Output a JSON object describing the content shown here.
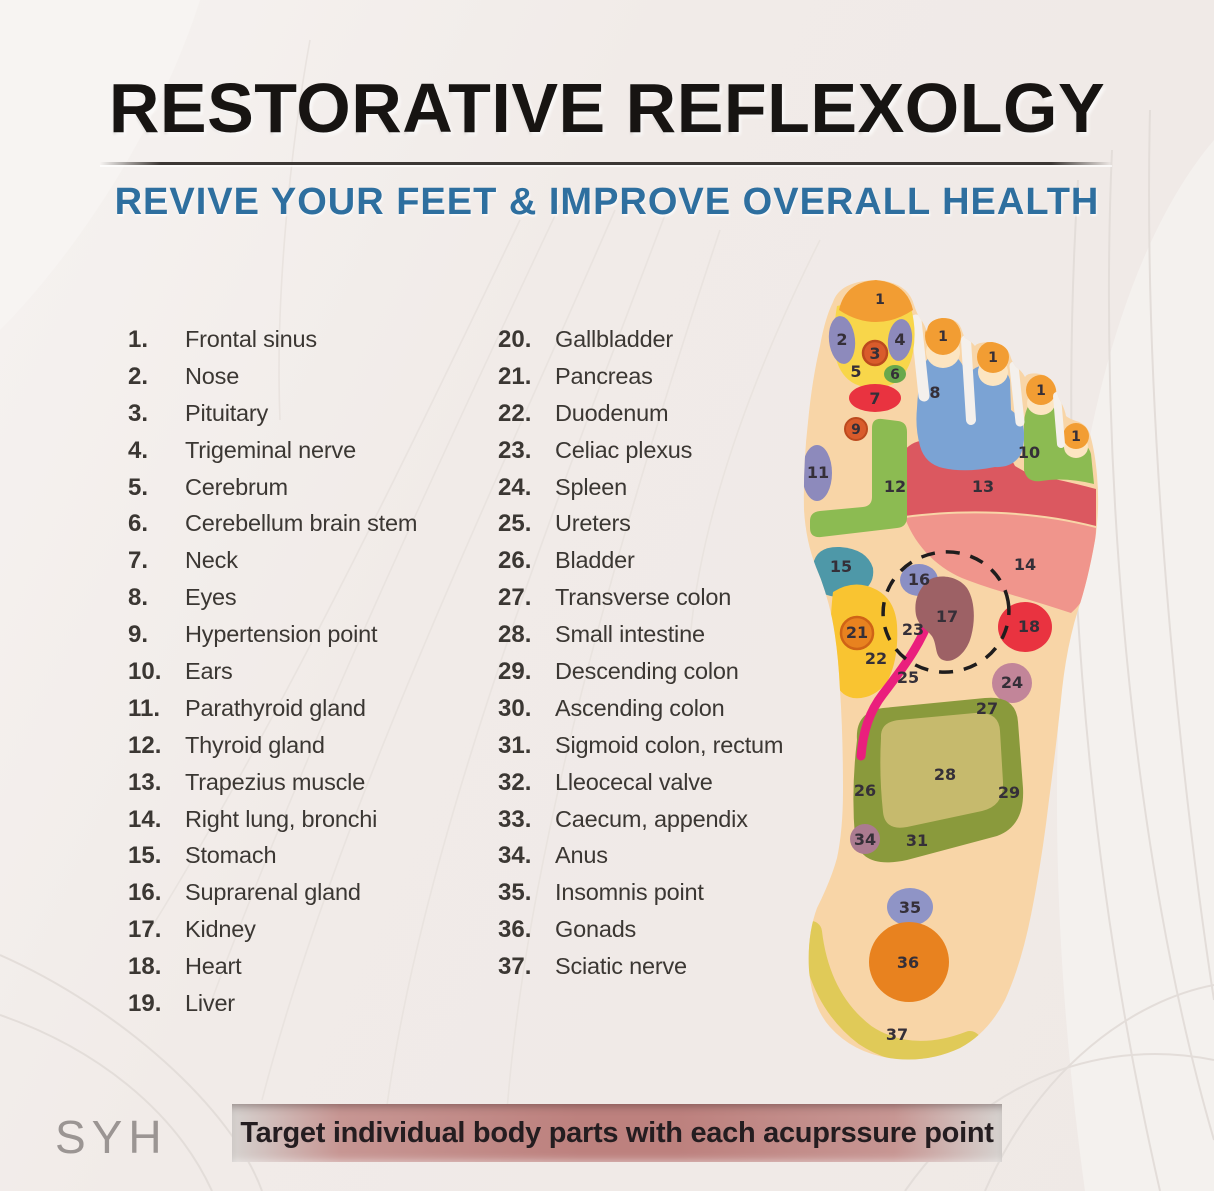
{
  "page": {
    "title": "RESTORATIVE REFLEXOLGY",
    "subtitle": "REVIVE YOUR FEET & IMPROVE OVERALL HEALTH",
    "banner": "Target individual body parts with each acuprssure point",
    "watermark": "SYH"
  },
  "legend": {
    "column1": [
      {
        "num": "1.",
        "label": "Frontal sinus"
      },
      {
        "num": "2.",
        "label": "Nose"
      },
      {
        "num": "3.",
        "label": "Pituitary"
      },
      {
        "num": "4.",
        "label": "Trigeminal nerve"
      },
      {
        "num": "5.",
        "label": "Cerebrum"
      },
      {
        "num": "6.",
        "label": "Cerebellum brain stem"
      },
      {
        "num": "7.",
        "label": "Neck"
      },
      {
        "num": "8.",
        "label": "Eyes"
      },
      {
        "num": "9.",
        "label": "Hypertension point"
      },
      {
        "num": "10.",
        "label": "Ears"
      },
      {
        "num": "11.",
        "label": "Parathyroid gland"
      },
      {
        "num": "12.",
        "label": "Thyroid gland"
      },
      {
        "num": "13.",
        "label": "Trapezius muscle"
      },
      {
        "num": "14.",
        "label": "Right lung, bronchi"
      },
      {
        "num": "15.",
        "label": "Stomach"
      },
      {
        "num": "16.",
        "label": "Suprarenal gland"
      },
      {
        "num": "17.",
        "label": "Kidney"
      },
      {
        "num": "18.",
        "label": "Heart"
      },
      {
        "num": "19.",
        "label": "Liver"
      }
    ],
    "column2": [
      {
        "num": "20.",
        "label": "Gallbladder"
      },
      {
        "num": "21.",
        "label": "Pancreas"
      },
      {
        "num": "22.",
        "label": "Duodenum"
      },
      {
        "num": "23.",
        "label": "Celiac plexus"
      },
      {
        "num": "24.",
        "label": "Spleen"
      },
      {
        "num": "25.",
        "label": "Ureters"
      },
      {
        "num": "26.",
        "label": "Bladder"
      },
      {
        "num": "27.",
        "label": "Transverse colon"
      },
      {
        "num": "28.",
        "label": "Small intestine"
      },
      {
        "num": "29.",
        "label": "Descending colon"
      },
      {
        "num": "30.",
        "label": "Ascending colon"
      },
      {
        "num": "31.",
        "label": "Sigmoid colon, rectum"
      },
      {
        "num": "32.",
        "label": "Lleocecal valve"
      },
      {
        "num": "33.",
        "label": "Caecum, appendix"
      },
      {
        "num": "34.",
        "label": "Anus"
      },
      {
        "num": "35.",
        "label": "Insomnis point"
      },
      {
        "num": "36.",
        "label": "Gonads"
      },
      {
        "num": "37.",
        "label": "Sciatic nerve"
      }
    ]
  },
  "foot": {
    "labels": [
      "1",
      "2",
      "3",
      "4",
      "5",
      "6",
      "7",
      "9",
      "1",
      "8",
      "1",
      "1",
      "1",
      "10",
      "11",
      "12",
      "13",
      "14",
      "15",
      "16",
      "17",
      "18",
      "21",
      "22",
      "23",
      "24",
      "25",
      "26",
      "27",
      "28",
      "29",
      "31",
      "34",
      "35",
      "36",
      "37"
    ]
  },
  "colors": {
    "accent_blue": "#2e6f9f",
    "title_black": "#171412",
    "banner_bg": "#bd817e",
    "banner_text": "#241d20",
    "legend_text": "#3b3733",
    "watermark_gray": "#9b9593",
    "foot": {
      "skin": "#f8d5a7",
      "skin_light": "#fce5c1",
      "toe_cap_orange": "#f29d33",
      "purple": "#8d8abc",
      "rust": "#d95b2b",
      "yellow": "#f8d64a",
      "gold": "#f9c431",
      "green": "#8cbb52",
      "dark_green": "#68a84c",
      "red": "#e93340",
      "rose": "#db5860",
      "salmon": "#f0958c",
      "blue": "#7ba3d4",
      "teal": "#4e98a8",
      "maroon": "#9d6165",
      "mauve": "#c28599",
      "plum": "#ab7b90",
      "olive": "#8a9a3c",
      "khaki": "#c6ba6d",
      "magenta": "#ea1f7d",
      "periwinkle": "#8f94c6",
      "deep_orange": "#e8821f",
      "heel_yellow": "#e0ca58",
      "label": "#352f38"
    }
  }
}
